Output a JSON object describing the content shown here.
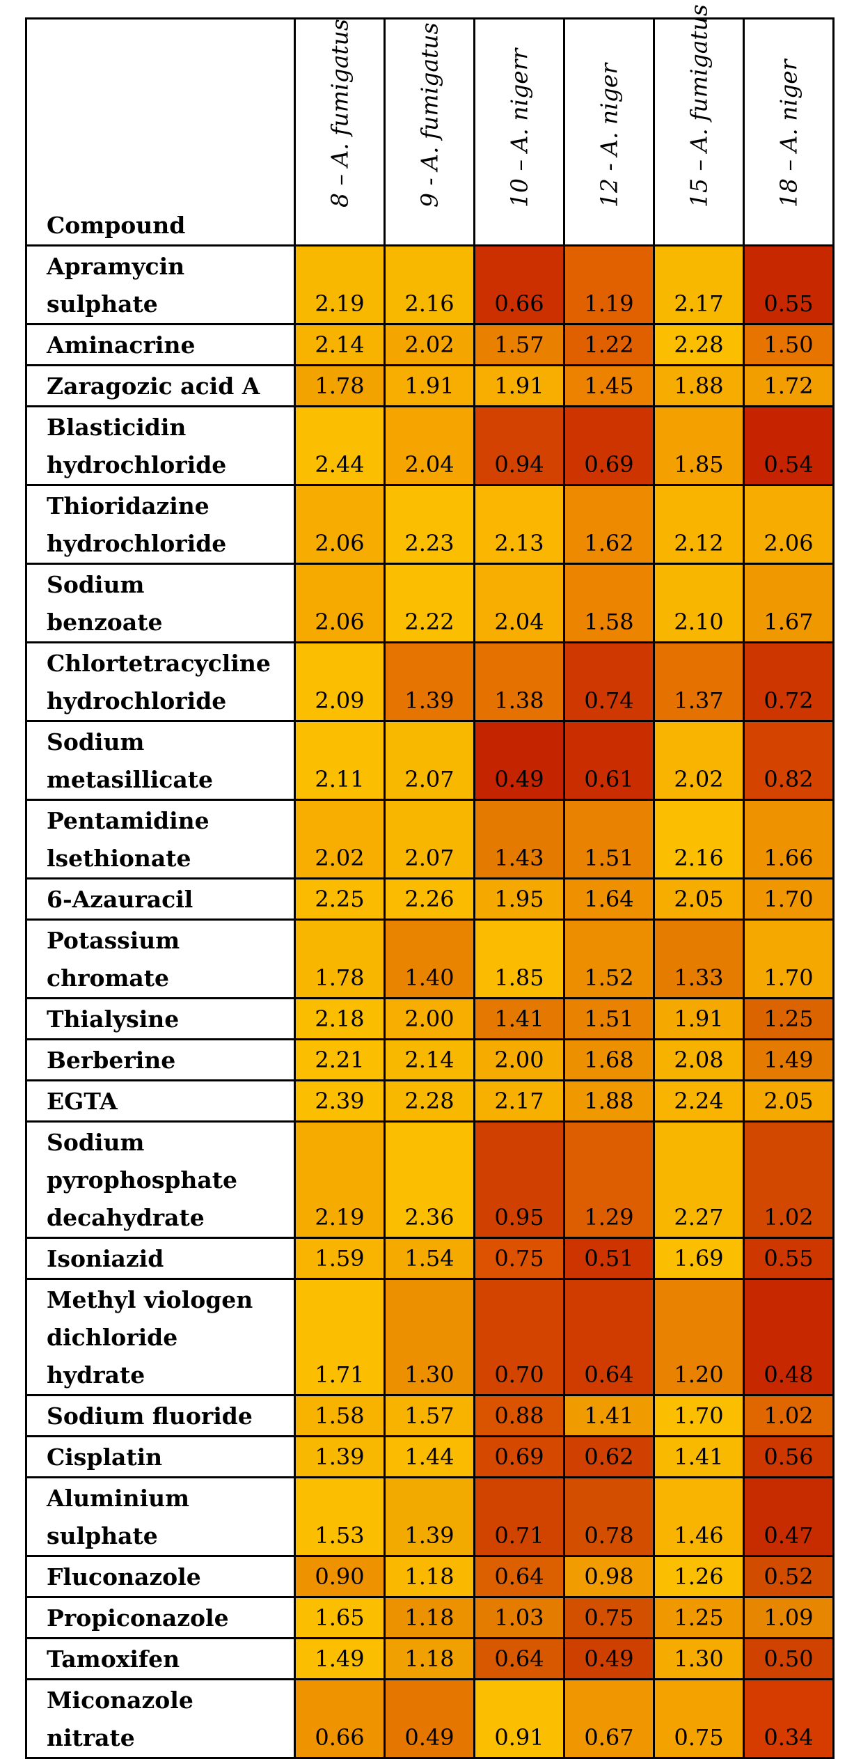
{
  "table": {
    "header": {
      "compound": "Compound",
      "strains": [
        "8 – A. fumigatus",
        "9 - A. fumigatus",
        "10 – A. nigerr",
        "12 - A. niger",
        "15 – A. fumigatus",
        "18 – A. niger"
      ]
    },
    "rows": [
      {
        "name": [
          "Apramycin",
          "sulphate"
        ],
        "values": [
          "2.19",
          "2.16",
          "0.66",
          "1.19",
          "2.17",
          "0.55"
        ],
        "colors": [
          "#f9b800",
          "#f9b800",
          "#cc3000",
          "#e16000",
          "#f9b800",
          "#c82800"
        ]
      },
      {
        "name": [
          "Aminacrine"
        ],
        "values": [
          "2.14",
          "2.02",
          "1.57",
          "1.22",
          "2.28",
          "1.50"
        ],
        "colors": [
          "#f8b300",
          "#f5a500",
          "#ea8000",
          "#e06000",
          "#fbbe00",
          "#e87400"
        ]
      },
      {
        "name": [
          "Zaragozic acid A"
        ],
        "values": [
          "1.78",
          "1.91",
          "1.91",
          "1.45",
          "1.88",
          "1.72"
        ],
        "colors": [
          "#f3a300",
          "#f7ae00",
          "#f7ae00",
          "#ec8200",
          "#f6ac00",
          "#f29e00"
        ]
      },
      {
        "name": [
          "Blasticidin",
          "hydrochloride"
        ],
        "values": [
          "2.44",
          "2.04",
          "0.94",
          "0.69",
          "1.85",
          "0.54"
        ],
        "colors": [
          "#fbbe00",
          "#f5a400",
          "#d34200",
          "#cd3400",
          "#f3a000",
          "#c62400"
        ]
      },
      {
        "name": [
          "Thioridazine",
          "hydrochloride"
        ],
        "values": [
          "2.06",
          "2.23",
          "2.13",
          "1.62",
          "2.12",
          "2.06"
        ],
        "colors": [
          "#f6ac00",
          "#fbbe00",
          "#fab600",
          "#ee8a00",
          "#f9b400",
          "#f6ac00"
        ]
      },
      {
        "name": [
          "Sodium",
          "benzoate"
        ],
        "values": [
          "2.06",
          "2.22",
          "2.04",
          "1.58",
          "2.10",
          "1.67"
        ],
        "colors": [
          "#f6aa00",
          "#fbbe00",
          "#f7ae00",
          "#ec8400",
          "#f9b600",
          "#f09800"
        ]
      },
      {
        "name": [
          "Chlortetracycline",
          "hydrochloride"
        ],
        "values": [
          "2.09",
          "1.39",
          "1.38",
          "0.74",
          "1.37",
          "0.72"
        ],
        "colors": [
          "#fbbe00",
          "#e57400",
          "#e57200",
          "#cf3800",
          "#e57200",
          "#ce3600"
        ]
      },
      {
        "name": [
          "Sodium",
          "metasillicate"
        ],
        "values": [
          "2.11",
          "2.07",
          "0.49",
          "0.61",
          "2.02",
          "0.82"
        ],
        "colors": [
          "#fbbe00",
          "#f9b800",
          "#c42400",
          "#ca2e00",
          "#f8b400",
          "#d44400"
        ]
      },
      {
        "name": [
          "Pentamidine",
          "lsethionate"
        ],
        "values": [
          "2.02",
          "2.07",
          "1.43",
          "1.51",
          "2.16",
          "1.66"
        ],
        "colors": [
          "#f7ae00",
          "#f9b600",
          "#e57a00",
          "#e98200",
          "#fbbe00",
          "#ee9200"
        ]
      },
      {
        "name": [
          "6-Azauracil"
        ],
        "values": [
          "2.25",
          "2.26",
          "1.95",
          "1.64",
          "2.05",
          "1.70"
        ],
        "colors": [
          "#fabb00",
          "#fabb00",
          "#f5a800",
          "#ee9000",
          "#f7ad00",
          "#f09600"
        ]
      },
      {
        "name": [
          "Potassium",
          "chromate"
        ],
        "values": [
          "1.78",
          "1.40",
          "1.85",
          "1.52",
          "1.33",
          "1.70"
        ],
        "colors": [
          "#f8b600",
          "#e88400",
          "#fabb00",
          "#ec8e00",
          "#e57c00",
          "#f5a800"
        ]
      },
      {
        "name": [
          "Thialysine"
        ],
        "values": [
          "2.18",
          "2.00",
          "1.41",
          "1.51",
          "1.91",
          "1.25"
        ],
        "colors": [
          "#fabd00",
          "#f7ae00",
          "#e47800",
          "#e88200",
          "#f5a800",
          "#dc6400"
        ]
      },
      {
        "name": [
          "Berberine"
        ],
        "values": [
          "2.21",
          "2.14",
          "2.00",
          "1.68",
          "2.08",
          "1.49"
        ],
        "colors": [
          "#fbbe00",
          "#f9b800",
          "#f5ab00",
          "#ed9000",
          "#f7b200",
          "#e47a00"
        ]
      },
      {
        "name": [
          "EGTA"
        ],
        "values": [
          "2.39",
          "2.28",
          "2.17",
          "1.88",
          "2.24",
          "2.05"
        ],
        "colors": [
          "#fbbe00",
          "#f9b800",
          "#f7b000",
          "#f09800",
          "#f8b400",
          "#f5a800"
        ]
      },
      {
        "name": [
          "Sodium",
          "pyrophosphate",
          "decahydrate"
        ],
        "values": [
          "2.19",
          "2.36",
          "0.95",
          "1.29",
          "2.27",
          "1.02"
        ],
        "colors": [
          "#f6ab00",
          "#fbbe00",
          "#d04000",
          "#dc5e00",
          "#f9b600",
          "#d34800"
        ]
      },
      {
        "name": [
          "Isoniazid"
        ],
        "values": [
          "1.59",
          "1.54",
          "0.75",
          "0.51",
          "1.69",
          "0.55"
        ],
        "colors": [
          "#f8b400",
          "#f5aa00",
          "#dc5200",
          "#cd3400",
          "#fbbe00",
          "#ce3800"
        ]
      },
      {
        "name": [
          "Methyl viologen",
          "dichloride",
          "hydrate"
        ],
        "values": [
          "1.71",
          "1.30",
          "0.70",
          "0.64",
          "1.20",
          "0.48"
        ],
        "colors": [
          "#fbbe00",
          "#ec9000",
          "#d24400",
          "#d03c00",
          "#e88200",
          "#c82800"
        ]
      },
      {
        "name": [
          "Sodium fluoride"
        ],
        "values": [
          "1.58",
          "1.57",
          "0.88",
          "1.41",
          "1.70",
          "1.02"
        ],
        "colors": [
          "#f8b300",
          "#f8b200",
          "#da5400",
          "#f09c00",
          "#fbbe00",
          "#e06600"
        ]
      },
      {
        "name": [
          "Cisplatin"
        ],
        "values": [
          "1.39",
          "1.44",
          "0.69",
          "0.62",
          "1.41",
          "0.56"
        ],
        "colors": [
          "#f8b700",
          "#fabb00",
          "#d44800",
          "#d04000",
          "#f9b900",
          "#cc3800"
        ]
      },
      {
        "name": [
          "Aluminium",
          "sulphate"
        ],
        "values": [
          "1.53",
          "1.39",
          "0.71",
          "0.78",
          "1.46",
          "0.47"
        ],
        "colors": [
          "#fbbe00",
          "#f3aa00",
          "#d04400",
          "#d44e00",
          "#f8b400",
          "#c62c00"
        ]
      },
      {
        "name": [
          "Fluconazole"
        ],
        "values": [
          "0.90",
          "1.18",
          "0.64",
          "0.98",
          "1.26",
          "0.52"
        ],
        "colors": [
          "#ee9200",
          "#fbb800",
          "#dc6000",
          "#f19c00",
          "#fbbe00",
          "#d24c00"
        ]
      },
      {
        "name": [
          "Propiconazole"
        ],
        "values": [
          "1.65",
          "1.18",
          "1.03",
          "0.75",
          "1.25",
          "1.09"
        ],
        "colors": [
          "#fbbe00",
          "#ec9200",
          "#e47c00",
          "#d25000",
          "#ef9800",
          "#e78600"
        ]
      },
      {
        "name": [
          "Tamoxifen"
        ],
        "values": [
          "1.49",
          "1.18",
          "0.64",
          "0.49",
          "1.30",
          "0.50"
        ],
        "colors": [
          "#fbbe00",
          "#f0a000",
          "#d85800",
          "#ce4000",
          "#f5ab00",
          "#cf4200"
        ]
      },
      {
        "name": [
          "Miconazole",
          "nitrate"
        ],
        "values": [
          "0.66",
          "0.49",
          "0.91",
          "0.67",
          "0.75",
          "0.34"
        ],
        "colors": [
          "#ef9400",
          "#e57600",
          "#fbbe00",
          "#f09600",
          "#f4a200",
          "#d63c00"
        ]
      }
    ]
  }
}
